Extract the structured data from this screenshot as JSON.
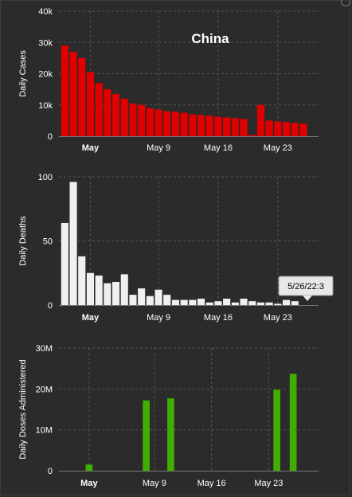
{
  "chart_data": [
    {
      "type": "bar",
      "title": "China",
      "ylabel": "Daily Cases",
      "ylim": [
        0,
        40000
      ],
      "yticks": [
        0,
        10000,
        20000,
        30000,
        40000
      ],
      "ytick_labels": [
        "0",
        "10k",
        "20k",
        "30k",
        "40k"
      ],
      "xtick_labels": [
        "May",
        "May 9",
        "May 16",
        "May 23"
      ],
      "xtick_days": [
        1,
        9,
        16,
        23
      ],
      "xtick_bold": [
        true,
        false,
        false,
        false
      ],
      "color": "#e00000",
      "x_start_day": -2,
      "values": [
        29000,
        27000,
        25000,
        20500,
        17000,
        15000,
        13500,
        12000,
        10500,
        10000,
        9000,
        8500,
        8000,
        7800,
        7500,
        7000,
        6800,
        6500,
        6200,
        6000,
        5800,
        5500,
        400,
        10000,
        5000,
        4700,
        4500,
        4300,
        4000
      ],
      "grid": true
    },
    {
      "type": "bar",
      "ylabel": "Daily Deaths",
      "ylim": [
        0,
        100
      ],
      "yticks": [
        0,
        50,
        100
      ],
      "ytick_labels": [
        "0",
        "50",
        "100"
      ],
      "xtick_labels": [
        "May",
        "May 9",
        "May 16",
        "May 23"
      ],
      "xtick_days": [
        1,
        9,
        16,
        23
      ],
      "xtick_bold": [
        true,
        false,
        false,
        false
      ],
      "color": "#f0f0f0",
      "x_start_day": -2,
      "values": [
        64,
        96,
        38,
        25,
        23,
        17,
        18,
        24,
        8,
        13,
        7,
        12,
        8,
        4,
        4,
        4,
        5,
        2,
        3,
        5,
        2,
        5,
        3,
        2,
        2,
        1,
        4,
        3
      ],
      "tooltip": "5/26/22:3",
      "grid": true
    },
    {
      "type": "bar",
      "ylabel": "Daily Doses Administered",
      "ylim": [
        0,
        30000000
      ],
      "yticks": [
        0,
        10000000,
        20000000,
        30000000
      ],
      "ytick_labels": [
        "0",
        "10M",
        "20M",
        "30M"
      ],
      "xtick_labels": [
        "May",
        "May 9",
        "May 16",
        "May 23"
      ],
      "xtick_days": [
        1,
        9,
        16,
        23
      ],
      "xtick_bold": [
        true,
        false,
        false,
        false
      ],
      "color": "#3fae00",
      "x_start_day": -2,
      "values": [
        0,
        0,
        0,
        1500000,
        0,
        0,
        0,
        0,
        0,
        0,
        17200000,
        0,
        0,
        17700000,
        0,
        0,
        0,
        0,
        0,
        0,
        0,
        0,
        0,
        0,
        0,
        0,
        19800000,
        0,
        23700000,
        0
      ],
      "grid": true
    }
  ]
}
